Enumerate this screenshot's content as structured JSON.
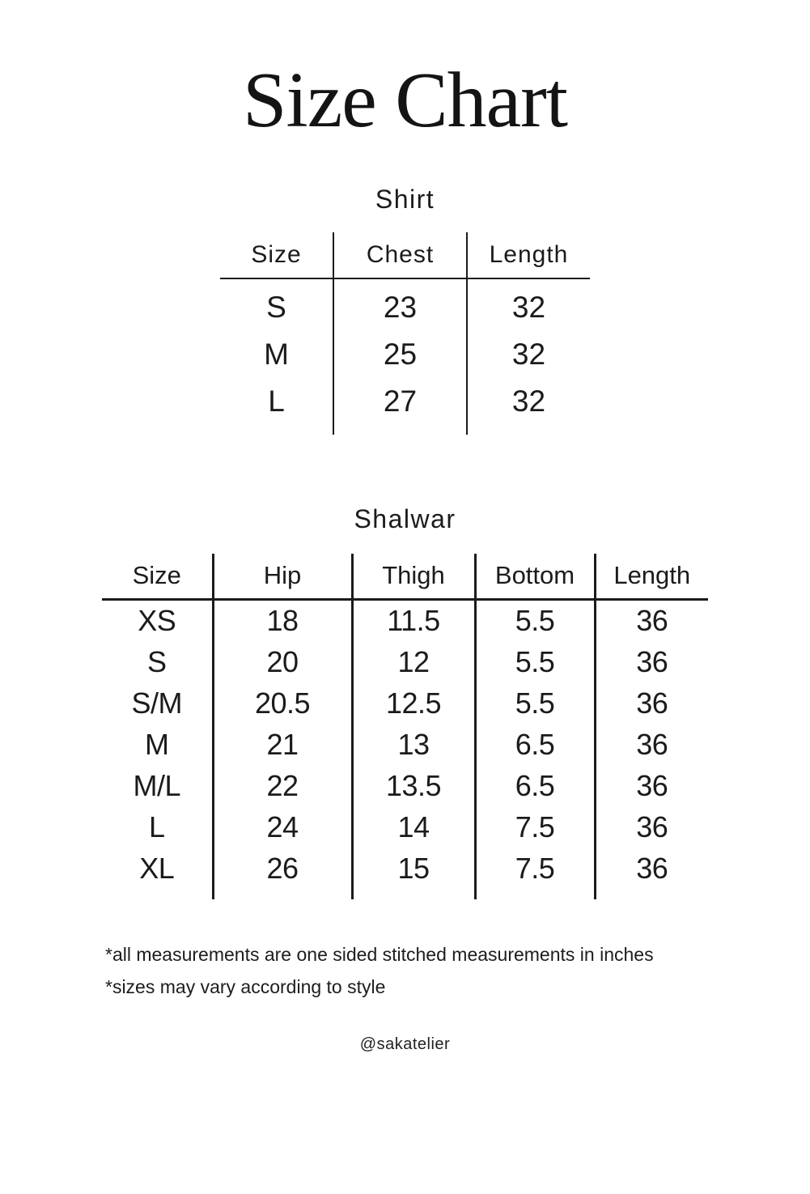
{
  "page": {
    "title": "Size Chart",
    "handle": "@sakatelier",
    "footnotes": [
      "*all measurements are one sided stitched measurements in inches",
      "*sizes may vary according to style"
    ]
  },
  "colors": {
    "background": "#ffffff",
    "text": "#1b1b1b",
    "line": "#1b1b1b"
  },
  "shirt_table": {
    "title": "Shirt",
    "columns": [
      "Size",
      "Chest",
      "Length"
    ],
    "rows": [
      [
        "S",
        "23",
        "32"
      ],
      [
        "M",
        "25",
        "32"
      ],
      [
        "L",
        "27",
        "32"
      ]
    ]
  },
  "shalwar_table": {
    "title": "Shalwar",
    "columns": [
      "Size",
      "Hip",
      "Thigh",
      "Bottom",
      "Length"
    ],
    "rows": [
      [
        "XS",
        "18",
        "11.5",
        "5.5",
        "36"
      ],
      [
        "S",
        "20",
        "12",
        "5.5",
        "36"
      ],
      [
        "S/M",
        "20.5",
        "12.5",
        "5.5",
        "36"
      ],
      [
        "M",
        "21",
        "13",
        "6.5",
        "36"
      ],
      [
        "M/L",
        "22",
        "13.5",
        "6.5",
        "36"
      ],
      [
        "L",
        "24",
        "14",
        "7.5",
        "36"
      ],
      [
        "XL",
        "26",
        "15",
        "7.5",
        "36"
      ]
    ]
  }
}
